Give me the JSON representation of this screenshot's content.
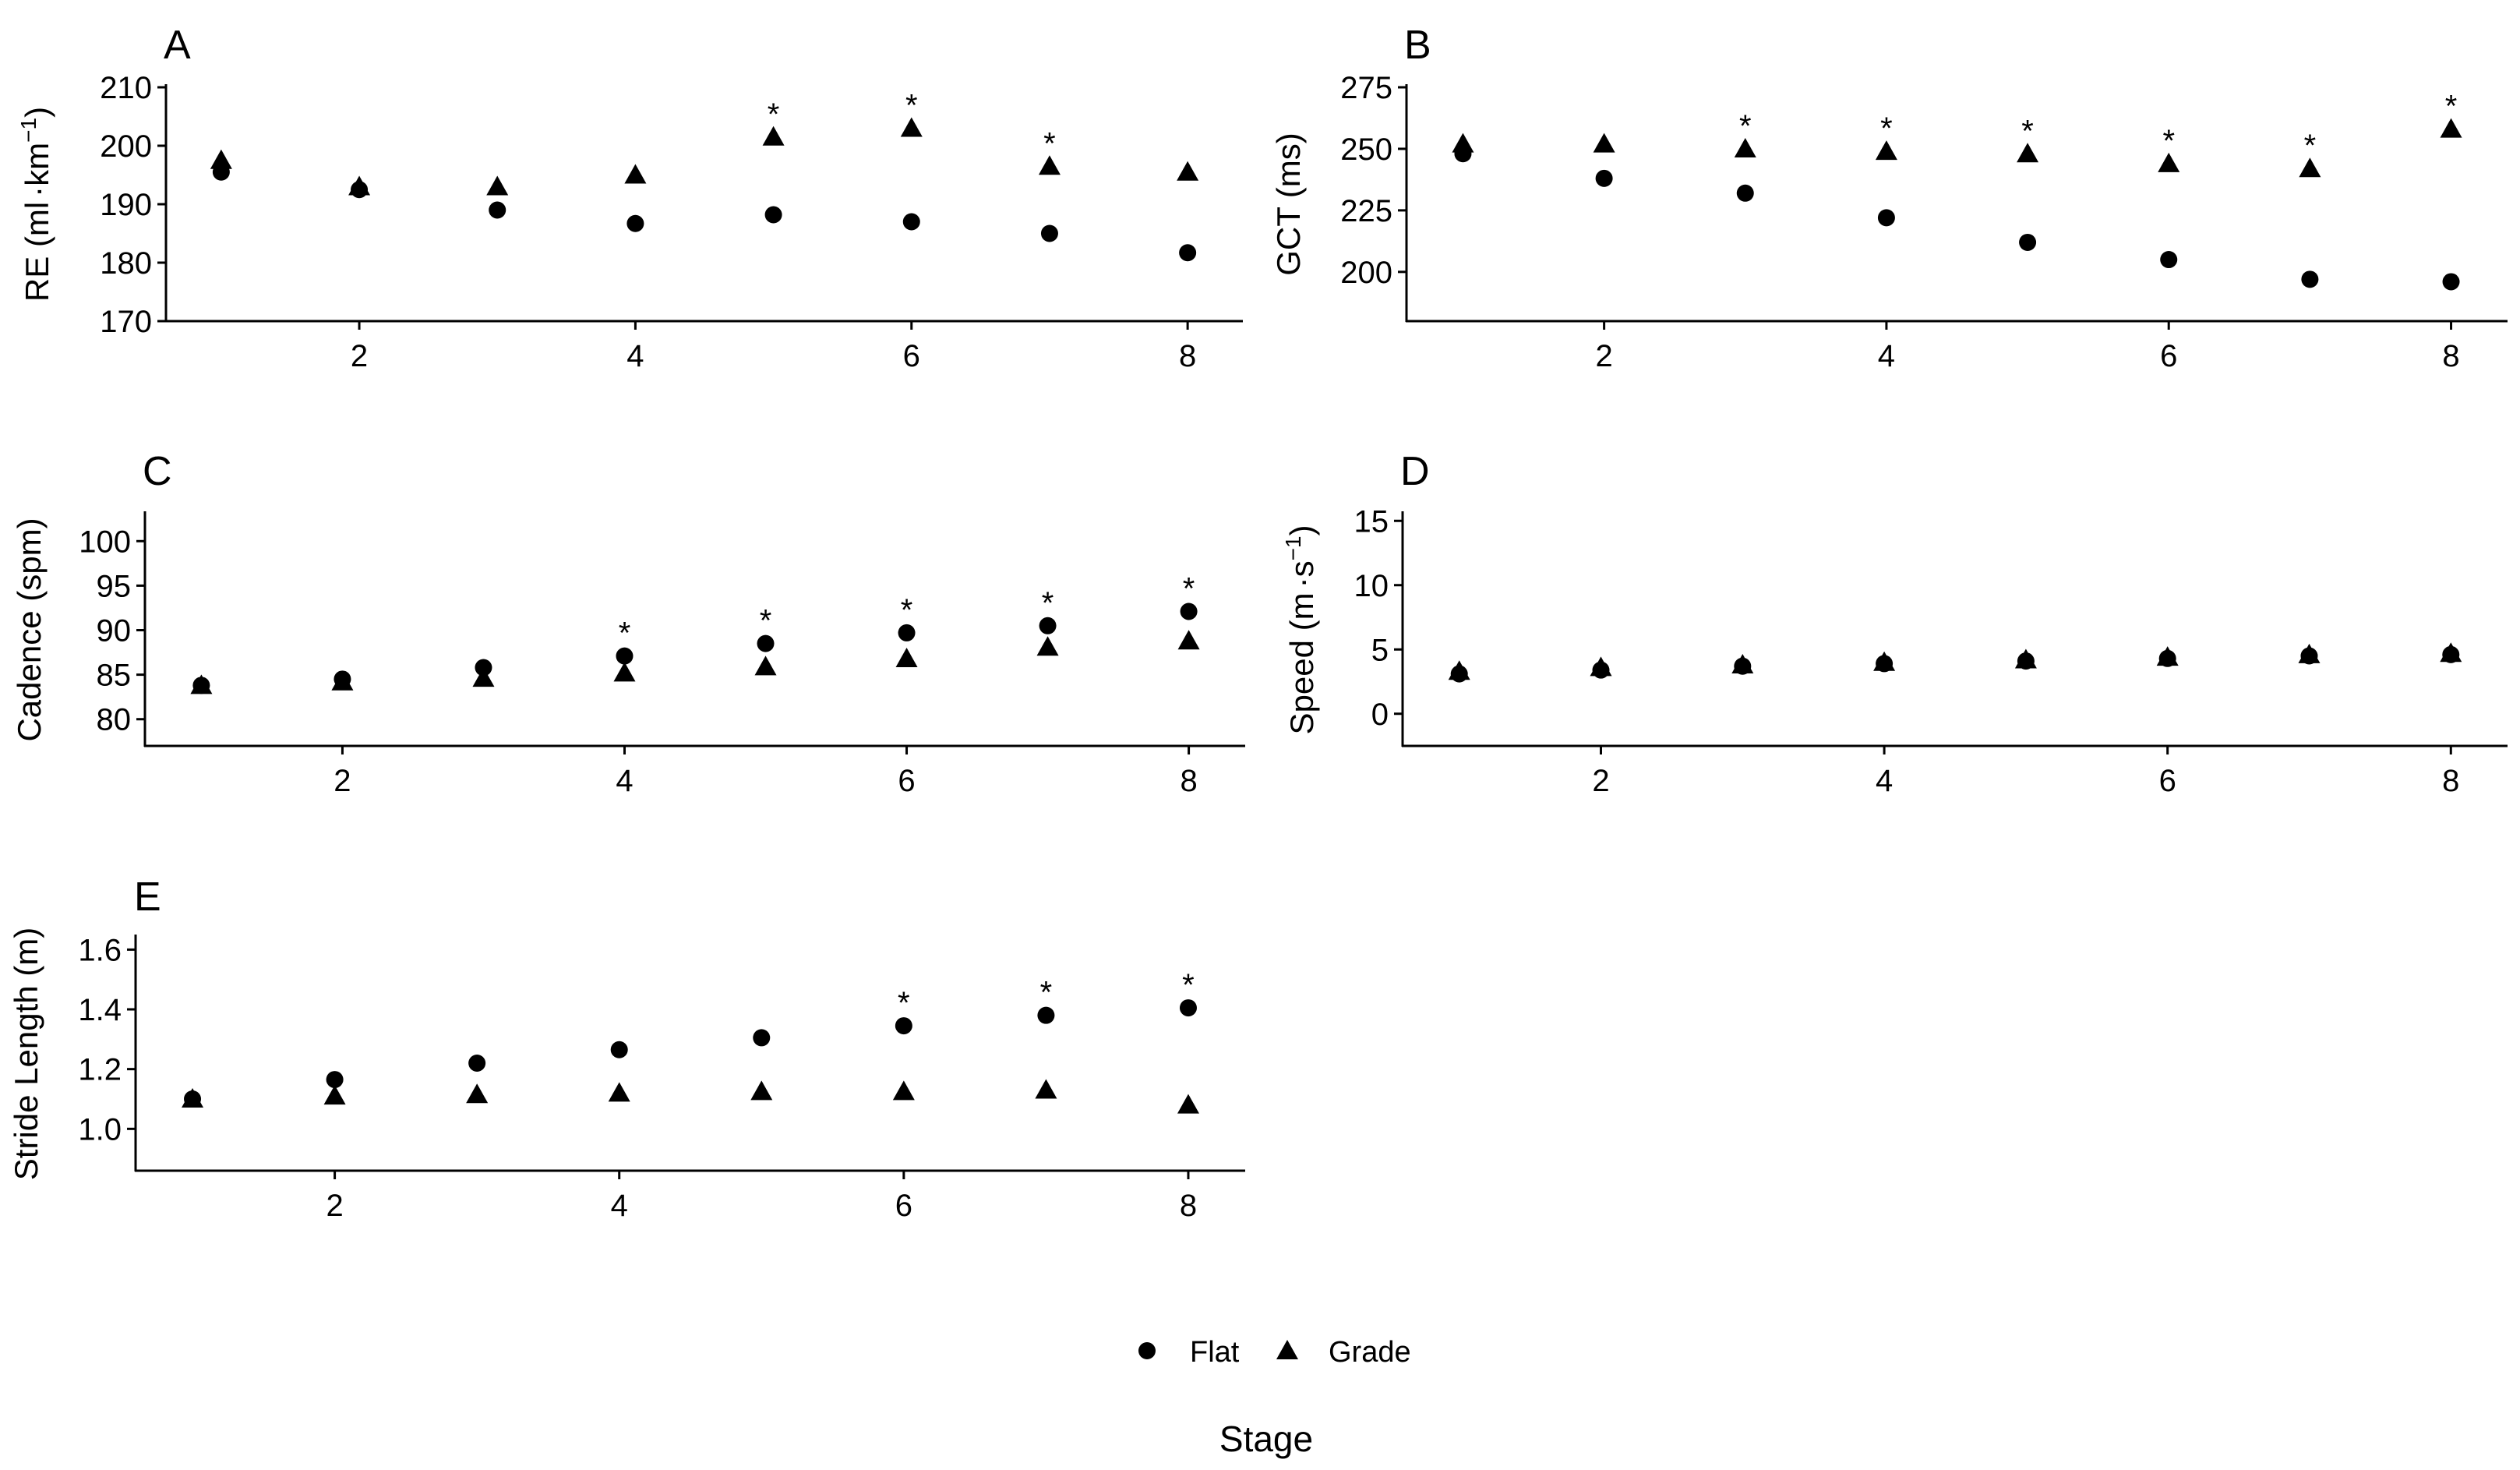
{
  "figure": {
    "xlabel": "Stage",
    "legend": {
      "position": "bottom",
      "items": [
        {
          "label": "Flat",
          "marker": "circle"
        },
        {
          "label": "Grade",
          "marker": "triangle"
        }
      ]
    }
  },
  "chart_data": [
    {
      "panel": "A",
      "type": "scatter",
      "ylabel": {
        "base": "RE (ml",
        "dot": "·",
        "unit": "km",
        "sup": "−1",
        "close": ")"
      },
      "ylim": [
        170,
        210
      ],
      "yticks": [
        "170",
        "180",
        "190",
        "200",
        "210"
      ],
      "xlim": [
        0.6,
        8.4
      ],
      "xticks": [
        "2",
        "4",
        "6",
        "8"
      ],
      "x": [
        1,
        2,
        3,
        4,
        5,
        6,
        7,
        8
      ],
      "series": [
        {
          "name": "Flat",
          "marker": "circle",
          "values": [
            195.5,
            192.5,
            189,
            186.7,
            188.2,
            187,
            185,
            181.7
          ]
        },
        {
          "name": "Grade",
          "marker": "triangle",
          "values": [
            197.5,
            193,
            193,
            195,
            201.5,
            203,
            196.5,
            195.5
          ]
        }
      ],
      "significant": [
        5,
        6,
        7
      ]
    },
    {
      "panel": "B",
      "type": "scatter",
      "ylabel": {
        "text": "GCT (ms)"
      },
      "ylim": [
        180,
        275
      ],
      "yticks": [
        "200",
        "225",
        "250",
        "275"
      ],
      "xlim": [
        0.6,
        8.4
      ],
      "xticks": [
        "2",
        "4",
        "6",
        "8"
      ],
      "x": [
        1,
        2,
        3,
        4,
        5,
        6,
        7,
        8
      ],
      "series": [
        {
          "name": "Flat",
          "marker": "circle",
          "values": [
            248,
            238,
            232,
            222,
            212,
            205,
            197,
            196
          ]
        },
        {
          "name": "Grade",
          "marker": "triangle",
          "values": [
            252,
            252,
            250,
            249,
            248,
            244,
            242,
            258
          ]
        }
      ],
      "significant": [
        3,
        4,
        5,
        6,
        7,
        8
      ]
    },
    {
      "panel": "C",
      "type": "scatter",
      "ylabel": {
        "text": "Cadence (spm)"
      },
      "ylim": [
        77,
        103
      ],
      "yticks": [
        "80",
        "85",
        "90",
        "95",
        "100"
      ],
      "xlim": [
        0.6,
        8.4
      ],
      "xticks": [
        "2",
        "4",
        "6",
        "8"
      ],
      "x": [
        1,
        2,
        3,
        4,
        5,
        6,
        7,
        8
      ],
      "series": [
        {
          "name": "Flat",
          "marker": "circle",
          "values": [
            83.8,
            84.5,
            85.8,
            87.1,
            88.5,
            89.7,
            90.5,
            92.1
          ]
        },
        {
          "name": "Grade",
          "marker": "triangle",
          "values": [
            83.8,
            84.2,
            84.6,
            85.2,
            85.9,
            86.8,
            88.1,
            88.8
          ]
        }
      ],
      "significant": [
        4,
        5,
        6,
        7,
        8
      ]
    },
    {
      "panel": "D",
      "type": "scatter",
      "ylabel": {
        "base": "Speed (m",
        "dot": "·",
        "unit": "s",
        "sup": "−1",
        "close": ")"
      },
      "ylim": [
        -2.5,
        15.5
      ],
      "yticks": [
        "0",
        "5",
        "10",
        "15"
      ],
      "xlim": [
        0.6,
        8.4
      ],
      "xticks": [
        "2",
        "4",
        "6",
        "8"
      ],
      "x": [
        1,
        2,
        3,
        4,
        5,
        6,
        7,
        8
      ],
      "series": [
        {
          "name": "Flat",
          "marker": "circle",
          "values": [
            3.1,
            3.4,
            3.7,
            3.9,
            4.1,
            4.3,
            4.5,
            4.6
          ]
        },
        {
          "name": "Grade",
          "marker": "triangle",
          "values": [
            3.3,
            3.6,
            3.8,
            4.0,
            4.2,
            4.4,
            4.6,
            4.7
          ]
        }
      ],
      "significant": []
    },
    {
      "panel": "E",
      "type": "scatter",
      "ylabel": {
        "text": "Stride Length (m)"
      },
      "ylim": [
        0.86,
        1.64
      ],
      "yticks": [
        "1.0",
        "1.2",
        "1.4",
        "1.6"
      ],
      "xlim": [
        0.6,
        8.4
      ],
      "xticks": [
        "2",
        "4",
        "6",
        "8"
      ],
      "x": [
        1,
        2,
        3,
        4,
        5,
        6,
        7,
        8
      ],
      "series": [
        {
          "name": "Flat",
          "marker": "circle",
          "values": [
            1.1,
            1.165,
            1.22,
            1.265,
            1.305,
            1.345,
            1.38,
            1.405
          ]
        },
        {
          "name": "Grade",
          "marker": "triangle",
          "values": [
            1.1,
            1.11,
            1.115,
            1.12,
            1.125,
            1.125,
            1.13,
            1.08
          ]
        }
      ],
      "significant": [
        6,
        7,
        8
      ]
    }
  ]
}
